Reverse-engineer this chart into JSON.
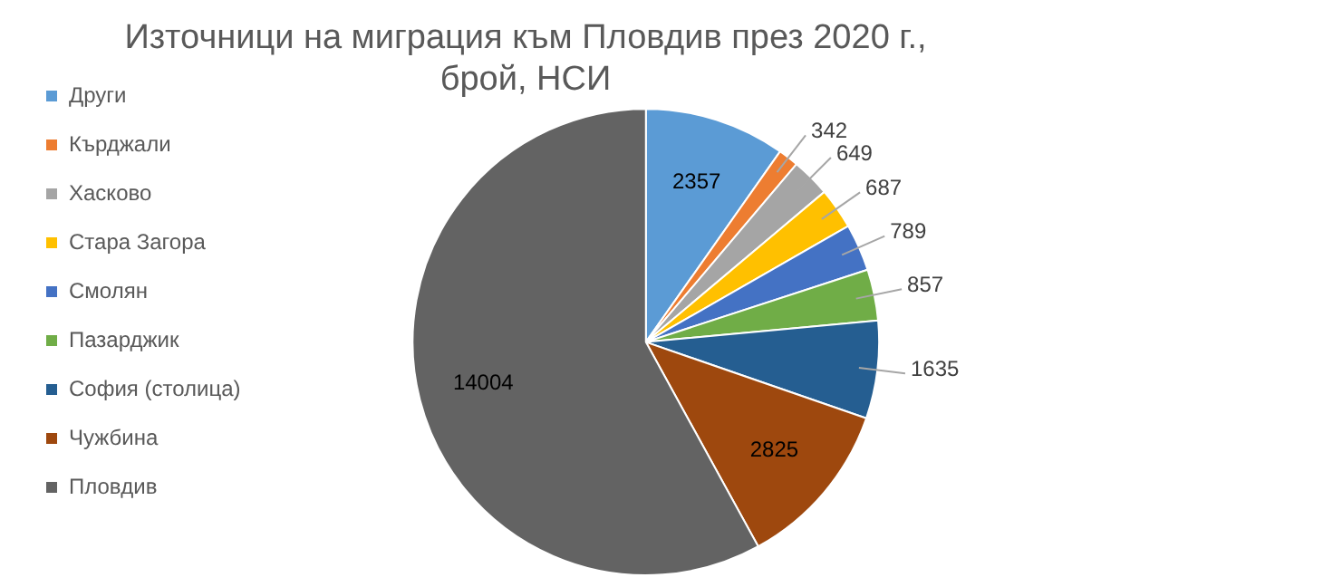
{
  "chart_data": {
    "type": "pie",
    "title": "Източници на миграция към Пловдив през 2020 г., брой, НСИ",
    "categories": [
      "Други",
      "Кърджали",
      "Хасково",
      "Стара Загора",
      "Смолян",
      "Пазарджик",
      "София (столица)",
      "Чужбина",
      "Пловдив"
    ],
    "values": [
      2357,
      342,
      649,
      687,
      789,
      857,
      1635,
      2825,
      14004
    ],
    "colors": [
      "#5b9bd5",
      "#ed7d31",
      "#a5a5a5",
      "#ffc000",
      "#4472c4",
      "#70ad47",
      "#255e91",
      "#9e480e",
      "#636363"
    ],
    "legend": "left",
    "data_labels": true
  }
}
